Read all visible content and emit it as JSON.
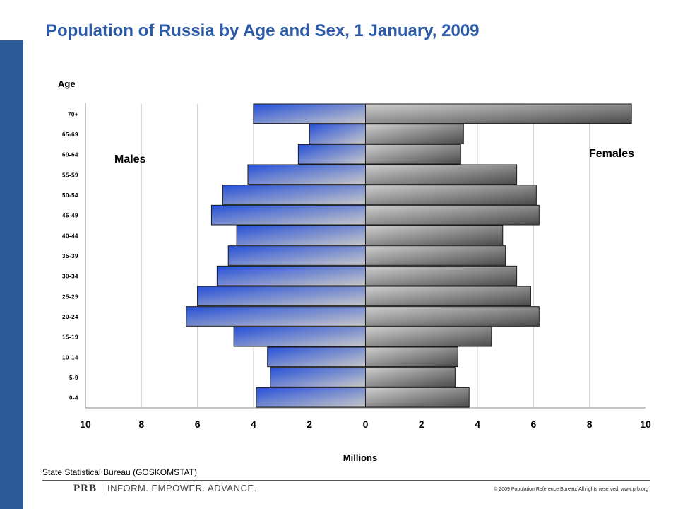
{
  "page": {
    "title": "Population of Russia by Age and Sex, 1 January, 2009",
    "source": "State Statistical Bureau (GOSKOMSTAT)",
    "logo_mark": "PRB",
    "logo_tagline": "INFORM. EMPOWER. ADVANCE.",
    "copyright": "© 2009 Population Reference Bureau. All rights reserved. www.prb.org",
    "accent_color": "#2a5a9a"
  },
  "chart_data": {
    "type": "bar",
    "orientation": "horizontal",
    "title": "Population of Russia by Age and Sex, 1 January, 2009",
    "xlabel": "Millions",
    "ylabel": "Age",
    "xlim": [
      -10,
      10
    ],
    "x_ticks": [
      "10",
      "8",
      "6",
      "4",
      "2",
      "0",
      "2",
      "4",
      "6",
      "8",
      "10"
    ],
    "grid": true,
    "categories": [
      "70+",
      "65-69",
      "60-64",
      "55-59",
      "50-54",
      "45-49",
      "40-44",
      "35-39",
      "30-34",
      "25-29",
      "20-24",
      "15-19",
      "10-14",
      "5-9",
      "0-4"
    ],
    "series": [
      {
        "name": "Males",
        "color": "#2a5ad0",
        "values": [
          4.0,
          2.0,
          2.4,
          4.2,
          5.1,
          5.5,
          4.6,
          4.9,
          5.3,
          6.0,
          6.4,
          4.7,
          3.5,
          3.4,
          3.9
        ]
      },
      {
        "name": "Females",
        "color": "#555555",
        "values": [
          9.5,
          3.5,
          3.4,
          5.4,
          6.1,
          6.2,
          4.9,
          5.0,
          5.4,
          5.9,
          6.2,
          4.5,
          3.3,
          3.2,
          3.7
        ]
      }
    ]
  }
}
